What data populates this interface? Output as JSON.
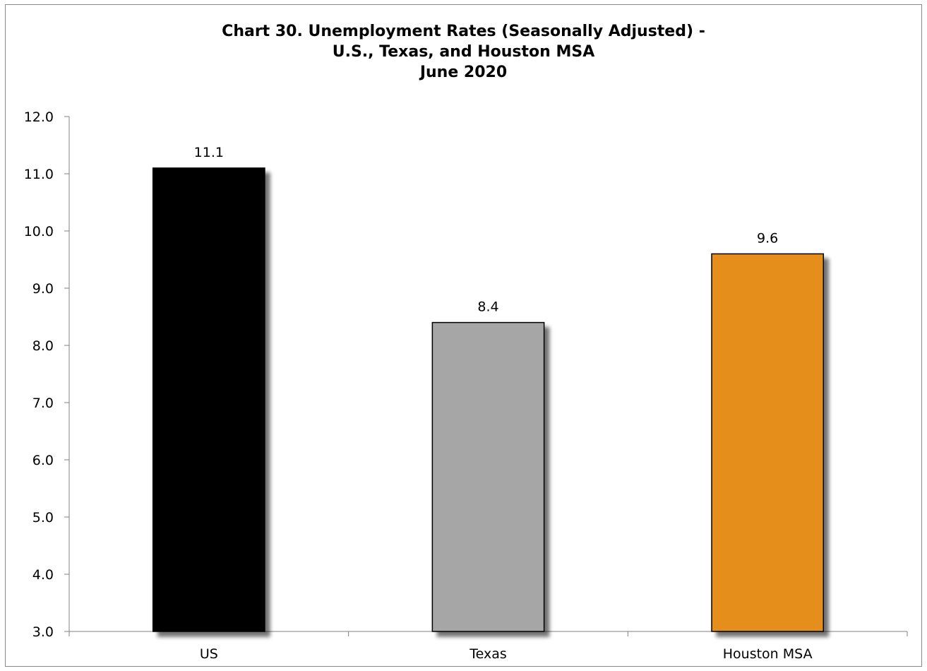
{
  "chart_data": {
    "type": "bar",
    "title_lines": [
      "Chart 30. Unemployment Rates (Seasonally Adjusted) -",
      "U.S., Texas, and Houston MSA",
      "June 2020"
    ],
    "categories": [
      "US",
      "Texas",
      "Houston MSA"
    ],
    "values": [
      11.1,
      8.4,
      9.6
    ],
    "data_labels": [
      "11.1",
      "8.4",
      "9.6"
    ],
    "colors": [
      "#000000",
      "#a6a6a6",
      "#e58e1a"
    ],
    "ylim": [
      3.0,
      12.0
    ],
    "yticks": [
      "3.0",
      "4.0",
      "5.0",
      "6.0",
      "7.0",
      "8.0",
      "9.0",
      "10.0",
      "11.0",
      "12.0"
    ],
    "xlabel": "",
    "ylabel": "",
    "grid": false,
    "legend": "none"
  }
}
